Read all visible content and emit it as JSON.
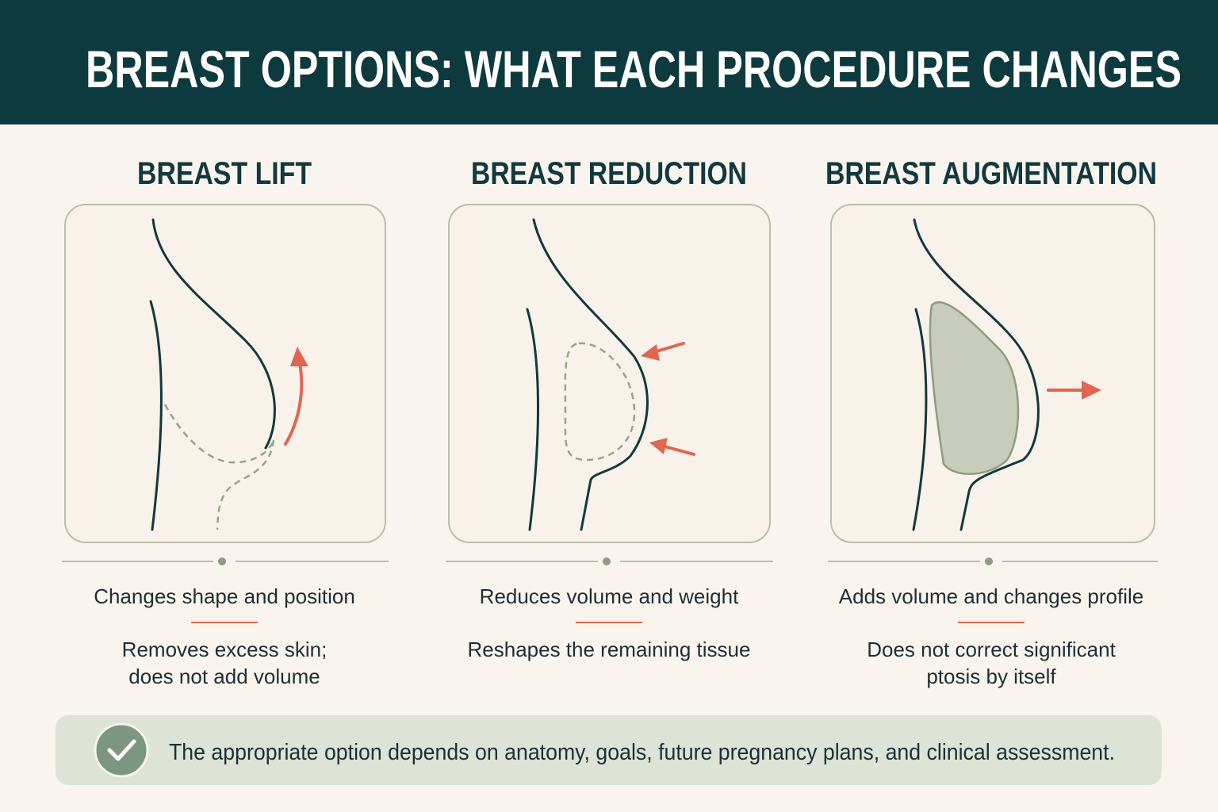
{
  "header": {
    "title": "BREAST OPTIONS: WHAT EACH PROCEDURE CHANGES"
  },
  "panels": [
    {
      "title": "BREAST LIFT",
      "primary": "Changes shape and position",
      "secondary": [
        "Removes excess skin;",
        "does not add volume"
      ]
    },
    {
      "title": "BREAST REDUCTION",
      "primary": "Reduces volume and weight",
      "secondary": [
        "Reshapes the remaining tissue"
      ]
    },
    {
      "title": "BREAST AUGMENTATION",
      "primary": "Adds volume and changes profile",
      "secondary": [
        "Does not correct significant",
        "ptosis by itself"
      ]
    }
  ],
  "footer": {
    "note": "The appropriate option depends on anatomy, goals, future pregnancy plans, and clinical assessment."
  }
}
